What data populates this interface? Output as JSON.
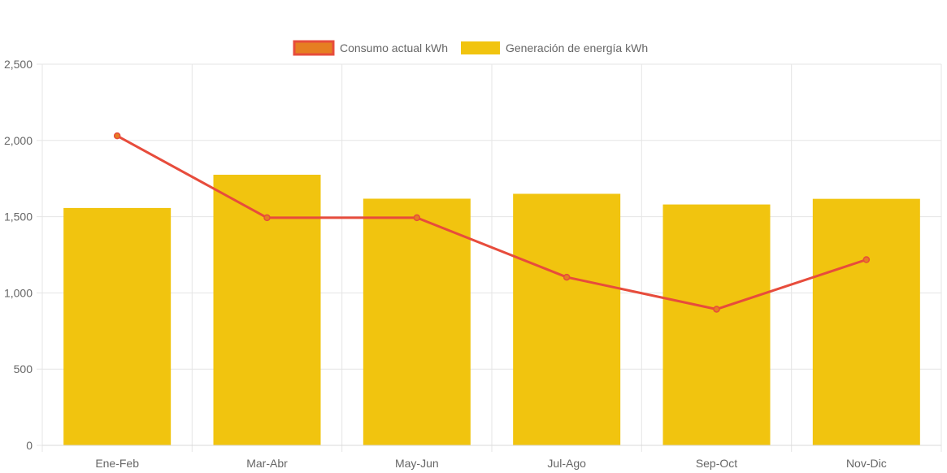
{
  "chart_data": {
    "type": "bar",
    "categories": [
      "Ene-Feb",
      "Mar-Abr",
      "May-Jun",
      "Jul-Ago",
      "Sep-Oct",
      "Nov-Dic"
    ],
    "series": [
      {
        "name": "Consumo actual kWh",
        "type": "line",
        "values": [
          2030,
          1493,
          1493,
          1103,
          893,
          1218
        ],
        "color": "#e74c3c",
        "fill_color": "#e67e22"
      },
      {
        "name": "Generación de energía kWh",
        "type": "bar",
        "values": [
          1557,
          1775,
          1618,
          1650,
          1580,
          1617
        ],
        "color": "#f1c40f"
      }
    ],
    "ylim": [
      0,
      2500
    ],
    "yticks": [
      "0",
      "500",
      "1,000",
      "1,500",
      "2,000",
      "2,500"
    ],
    "ytick_values": [
      0,
      500,
      1000,
      1500,
      2000,
      2500
    ],
    "grid": true,
    "legend_position": "top-center"
  }
}
